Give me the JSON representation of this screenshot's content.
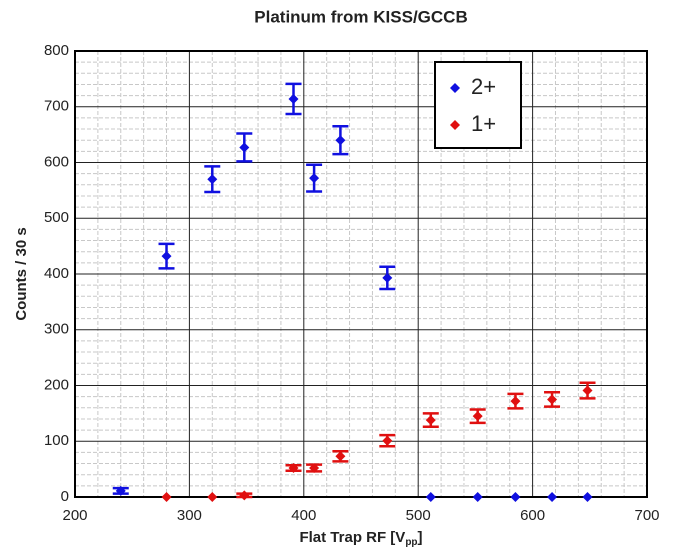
{
  "chart_data": {
    "type": "scatter",
    "title": "Platinum from KISS/GCCB",
    "xlabel": [
      "Flat Trap RF [V",
      "pp",
      "]"
    ],
    "ylabel": "Counts / 30 s",
    "xlim": [
      200,
      700
    ],
    "xticks": [
      200,
      300,
      400,
      500,
      600,
      700
    ],
    "ylim": [
      0,
      800
    ],
    "yticks": [
      0,
      100,
      200,
      300,
      400,
      500,
      600,
      700,
      800
    ],
    "grid": true,
    "minor_divisions": 5,
    "legend": "upper right",
    "series": [
      {
        "name": "2+",
        "color": "#1010e0",
        "x": [
          240,
          280,
          320,
          348,
          391,
          409,
          432,
          473,
          511,
          552,
          585,
          617,
          648
        ],
        "values": [
          11,
          432,
          570,
          627,
          714,
          572,
          640,
          393,
          0,
          0,
          0,
          0,
          0
        ],
        "errors": [
          5,
          22,
          23,
          25,
          27,
          24,
          25,
          20,
          0,
          0,
          0,
          0,
          0
        ]
      },
      {
        "name": "1+",
        "color": "#e01010",
        "x": [
          280,
          320,
          348,
          391,
          409,
          432,
          473,
          511,
          552,
          585,
          617,
          648
        ],
        "values": [
          0,
          0,
          3,
          52,
          52,
          73,
          101,
          138,
          145,
          172,
          175,
          191
        ],
        "errors": [
          0,
          0,
          3,
          5,
          6,
          9,
          10,
          12,
          12,
          13,
          13,
          14
        ]
      }
    ]
  }
}
